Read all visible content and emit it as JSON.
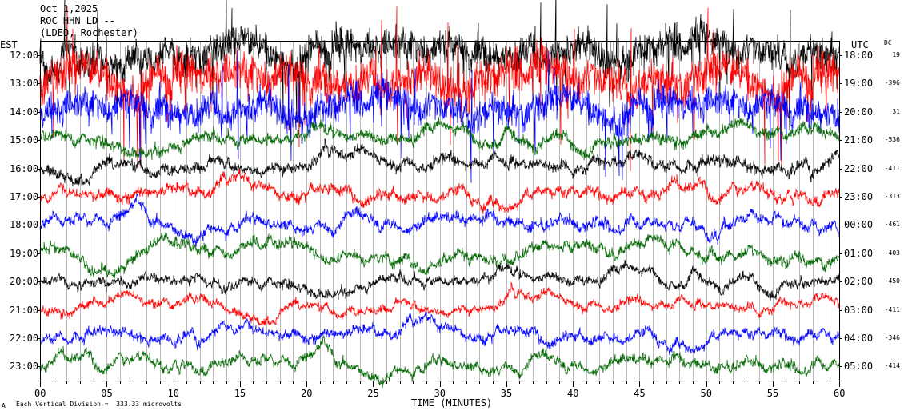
{
  "header": {
    "date": "Oct 1,2025",
    "station": "ROC HHN LD --",
    "location": "(LDEO, Rochester)"
  },
  "left_axis_label": "EST",
  "right_axis_label": "UTC",
  "dc_header": "DC",
  "footer": {
    "note": "Each Vertical Division =  333.33 microvolts",
    "mark": "A"
  },
  "chart_data": {
    "type": "line",
    "title": "",
    "xlabel": "TIME (MINUTES)",
    "ylabel": "",
    "xlim": [
      0,
      60
    ],
    "x_ticks": [
      "00",
      "05",
      "10",
      "15",
      "20",
      "25",
      "30",
      "35",
      "40",
      "45",
      "50",
      "55",
      "60"
    ],
    "rows": [
      {
        "est": "12:00",
        "utc": "18:00",
        "dc": "19",
        "color": "#000000",
        "amplitude": 3.2
      },
      {
        "est": "13:00",
        "utc": "19:00",
        "dc": "-396",
        "color": "#ff0000",
        "amplitude": 3.8
      },
      {
        "est": "14:00",
        "utc": "20:00",
        "dc": "31",
        "color": "#0000ff",
        "amplitude": 3.0
      },
      {
        "est": "15:00",
        "utc": "21:00",
        "dc": "-536",
        "color": "#006600",
        "amplitude": 1.0
      },
      {
        "est": "16:00",
        "utc": "22:00",
        "dc": "-411",
        "color": "#000000",
        "amplitude": 1.0
      },
      {
        "est": "17:00",
        "utc": "23:00",
        "dc": "-313",
        "color": "#ff0000",
        "amplitude": 0.9
      },
      {
        "est": "18:00",
        "utc": "00:00",
        "dc": "-461",
        "color": "#0000ff",
        "amplitude": 0.9
      },
      {
        "est": "19:00",
        "utc": "01:00",
        "dc": "-403",
        "color": "#006600",
        "amplitude": 0.9
      },
      {
        "est": "20:00",
        "utc": "02:00",
        "dc": "-450",
        "color": "#000000",
        "amplitude": 0.8
      },
      {
        "est": "21:00",
        "utc": "03:00",
        "dc": "-411",
        "color": "#ff0000",
        "amplitude": 0.7
      },
      {
        "est": "22:00",
        "utc": "04:00",
        "dc": "-346",
        "color": "#0000ff",
        "amplitude": 0.8
      },
      {
        "est": "23:00",
        "utc": "05:00",
        "dc": "-414",
        "color": "#006600",
        "amplitude": 0.8
      }
    ]
  }
}
